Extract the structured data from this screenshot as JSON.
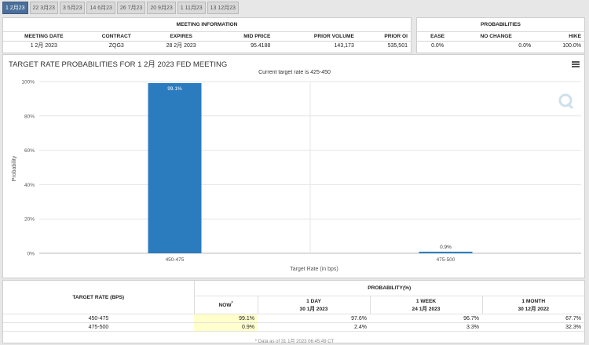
{
  "tabs": [
    "1 2月23",
    "22 3月23",
    "3 5月23",
    "14 6月23",
    "26 7月23",
    "20 9月23",
    "1 11月23",
    "13 12月23"
  ],
  "meeting": {
    "title": "MEETING INFORMATION",
    "headers": [
      "MEETING DATE",
      "CONTRACT",
      "EXPIRES",
      "MID PRICE",
      "PRIOR VOLUME",
      "PRIOR OI"
    ],
    "row": [
      "1 2月 2023",
      "ZQG3",
      "28 2月 2023",
      "95.4188",
      "143,173",
      "535,501"
    ]
  },
  "probabilities": {
    "title": "PROBABILITIES",
    "headers": [
      "EASE",
      "NO CHANGE",
      "HIKE"
    ],
    "row": [
      "0.0%",
      "0.0%",
      "100.0%"
    ]
  },
  "chart": {
    "title": "TARGET RATE PROBABILITIES FOR 1 2月 2023 FED MEETING",
    "subtitle": "Current target rate is 425-450",
    "menu_icon": "hamburger-icon",
    "logo_icon": "cme-q-logo"
  },
  "chart_data": {
    "type": "bar",
    "categories": [
      "450-475",
      "475-500"
    ],
    "values": [
      99.1,
      0.9
    ],
    "value_labels": [
      "99.1%",
      "0.9%"
    ],
    "xlabel": "Target Rate (in bps)",
    "ylabel": "Probability",
    "yticks": [
      "0%",
      "20%",
      "40%",
      "60%",
      "80%",
      "100%"
    ],
    "ylim": [
      0,
      100
    ],
    "bar_color": "#2b7cbf"
  },
  "prob_table": {
    "left_header": "TARGET RATE (BPS)",
    "top_header": "PROBABILITY(%)",
    "columns": [
      {
        "l1": "NOW",
        "sup": "*",
        "l2": ""
      },
      {
        "l1": "1 DAY",
        "l2": "30 1月 2023"
      },
      {
        "l1": "1 WEEK",
        "l2": "24 1月 2023"
      },
      {
        "l1": "1 MONTH",
        "l2": "30 12月 2022"
      }
    ],
    "rows": [
      {
        "rate": "450-475",
        "vals": [
          "99.1%",
          "97.6%",
          "96.7%",
          "67.7%"
        ]
      },
      {
        "rate": "475-500",
        "vals": [
          "0.9%",
          "2.4%",
          "3.3%",
          "32.3%"
        ]
      }
    ],
    "note": "* Data as of 31 1月 2023 06:45:49 CT"
  }
}
